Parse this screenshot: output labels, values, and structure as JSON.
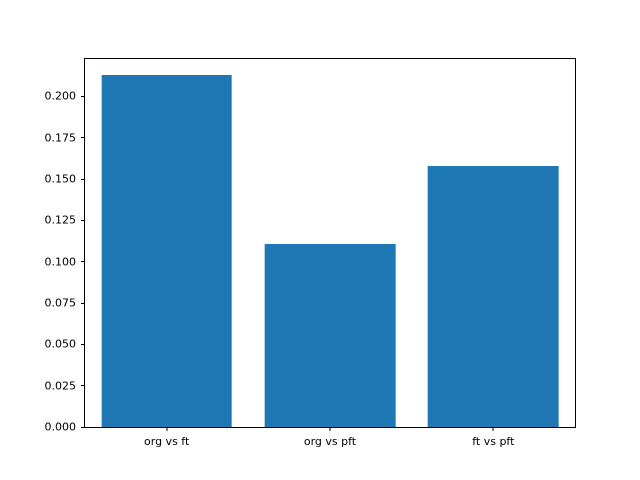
{
  "figure": {
    "background": "#ffffff",
    "spine_color": "#000000",
    "text_color": "#000000"
  },
  "chart_data": {
    "type": "bar",
    "title": "",
    "xlabel": "",
    "ylabel": "",
    "categories": [
      "org vs ft",
      "org vs pft",
      "ft vs pft"
    ],
    "values": [
      0.213,
      0.111,
      0.158
    ],
    "series": [
      {
        "name": "",
        "values": [
          0.213,
          0.111,
          0.158
        ]
      }
    ],
    "bar_color": "#1f77b4",
    "bar_width_fraction": 0.8,
    "ylim": [
      0,
      0.2226
    ],
    "yticks": [
      0.0,
      0.025,
      0.05,
      0.075,
      0.1,
      0.125,
      0.15,
      0.175,
      0.2
    ],
    "ytick_labels": [
      "0.000",
      "0.025",
      "0.050",
      "0.075",
      "0.100",
      "0.125",
      "0.150",
      "0.175",
      "0.200"
    ],
    "grid": false,
    "legend": null
  }
}
